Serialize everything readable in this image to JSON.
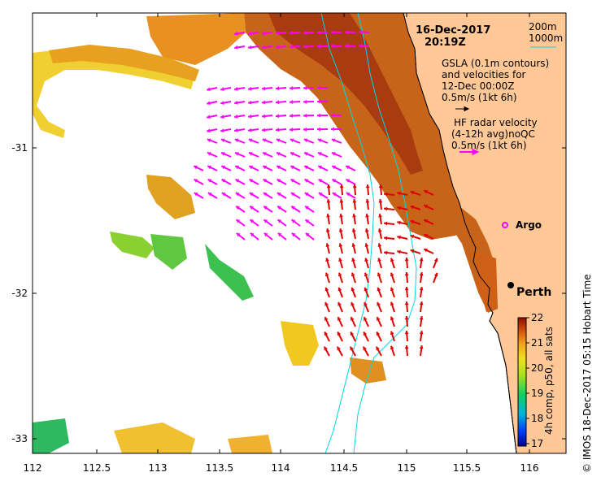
{
  "title": {
    "date": "16-Dec-2017",
    "time": "20:19Z"
  },
  "depth_legend": {
    "shallow": "200m",
    "deep": "1000m",
    "line_color": "#00d8e0"
  },
  "gsla_legend": {
    "line1": "GSLA (0.1m contours)",
    "line2": "and velocities for",
    "line3": "12-Dec 00:00Z",
    "line4": "0.5m/s (1kt 6h)",
    "arrow_color": "#000000"
  },
  "hf_legend": {
    "line1": "HF radar velocity",
    "line2": "(4-12h avg)noQC",
    "line3": "0.5m/s (1kt 6h)",
    "arrow_color": "#ff00ff"
  },
  "places": {
    "argo": "Argo",
    "perth": "Perth"
  },
  "axes": {
    "x_ticks": [
      "112",
      "112.5",
      "113",
      "113.5",
      "114",
      "114.5",
      "115",
      "115.5",
      "116"
    ],
    "y_ticks": [
      "-31",
      "-32",
      "-33"
    ]
  },
  "colorbar": {
    "label": "4h comp, p50, all sats",
    "ticks": [
      "22",
      "21",
      "20",
      "19",
      "18",
      "17"
    ],
    "range": [
      17,
      22
    ]
  },
  "side_credit": "© IMOS 18-Dec-2017 05:15 Hobart Time",
  "colors": {
    "land": "#ffc896",
    "hf_vectors": "#ff00ff",
    "current_vectors": "#e00000",
    "isobath": "#00d8e0"
  }
}
